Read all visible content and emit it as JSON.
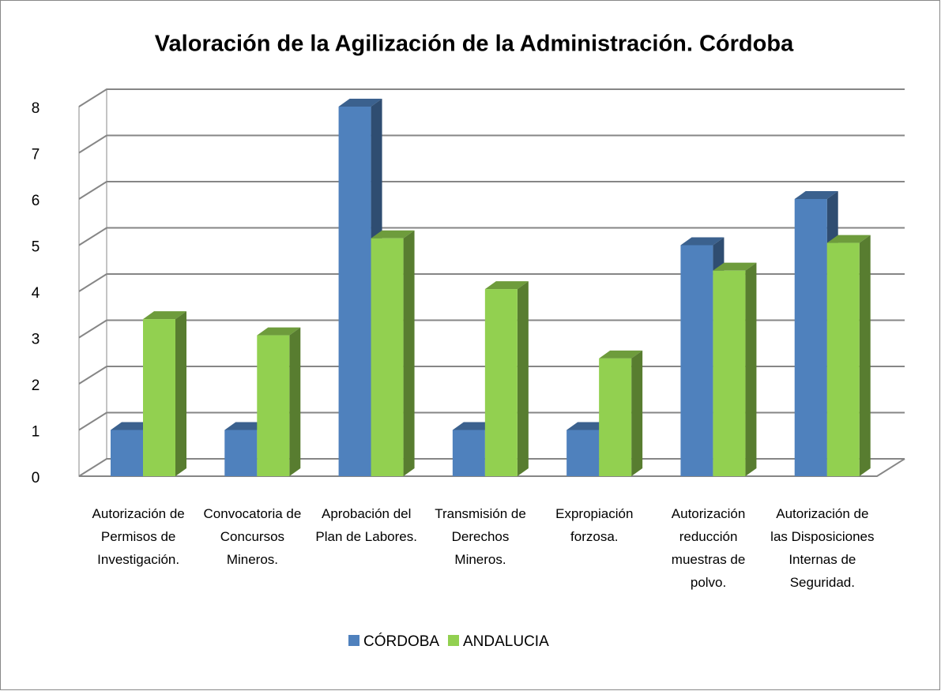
{
  "chart_data": {
    "type": "bar3d",
    "title": "Valoración de la Agilización de la Administración. Córdoba",
    "categories": [
      "Autorización de Permisos de Investigación.",
      "Convocatoria de Concursos Mineros.",
      "Aprobación del Plan de Labores.",
      "Transmisión de Derechos Mineros.",
      "Expropiación forzosa.",
      "Autorización reducción muestras de polvo.",
      "Autorización de las Disposiciones Internas de Seguridad."
    ],
    "series": [
      {
        "name": "CÓRDOBA",
        "color": "#4f81bd",
        "values": [
          1,
          1,
          8,
          1,
          1,
          5,
          6
        ]
      },
      {
        "name": "ANDALUCIA",
        "color": "#92d050",
        "values": [
          3.4,
          3.05,
          5.15,
          4.05,
          2.55,
          4.45,
          5.05
        ]
      }
    ],
    "ylim": [
      0,
      8
    ],
    "yticks": [
      0,
      1,
      2,
      3,
      4,
      5,
      6,
      7,
      8
    ],
    "grid": true,
    "legend": "bottom"
  }
}
